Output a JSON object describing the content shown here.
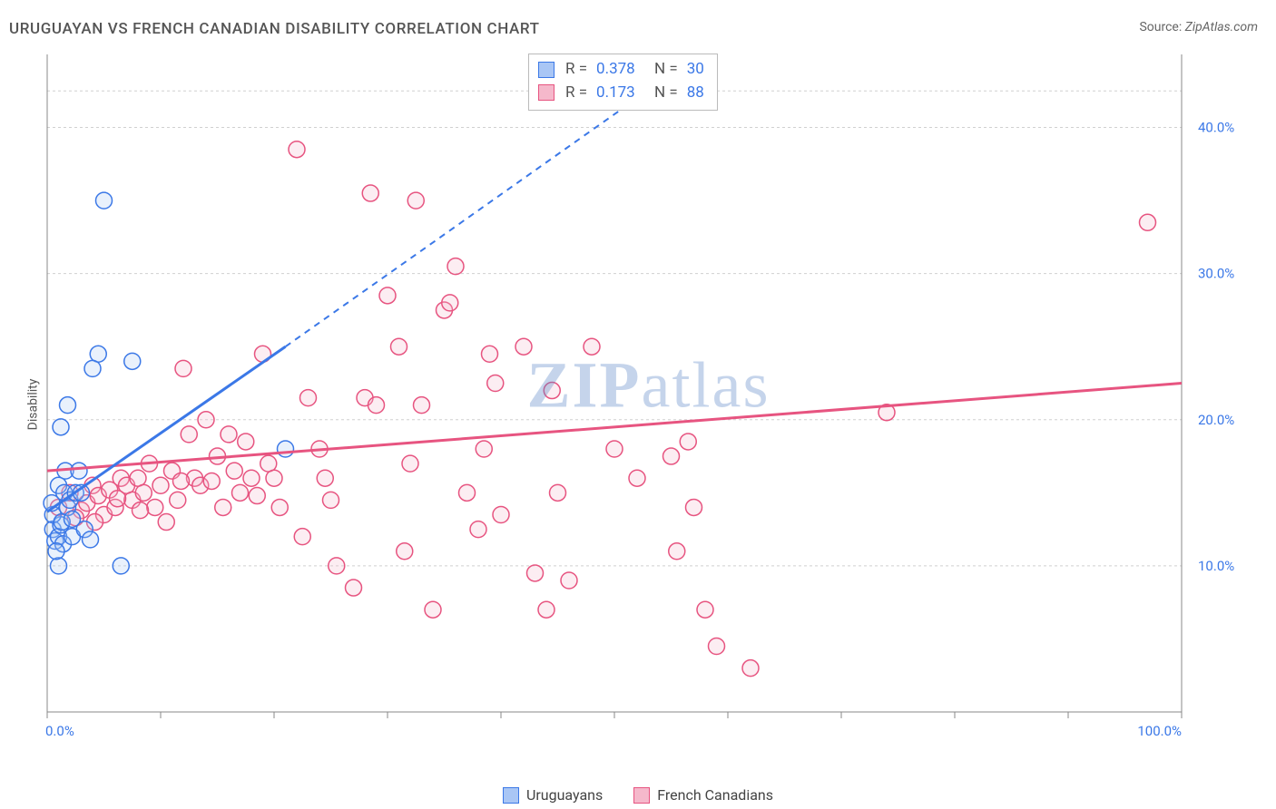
{
  "chart": {
    "type": "scatter",
    "title": "URUGUAYAN VS FRENCH CANADIAN DISABILITY CORRELATION CHART",
    "source_label": "Source:",
    "source_value": "ZipAtlas.com",
    "y_axis_label": "Disability",
    "xlim": [
      0,
      100
    ],
    "ylim": [
      0,
      45
    ],
    "x_tick_label_min": "0.0%",
    "x_tick_label_max": "100.0%",
    "x_minor_tick_step": 10,
    "y_ticks": [
      10,
      20,
      30,
      40
    ],
    "y_tick_labels": [
      "10.0%",
      "20.0%",
      "30.0%",
      "40.0%"
    ],
    "grid_color": "#d0d0d0",
    "axis_color": "#888888",
    "tick_label_color": "#3b78e7",
    "background_color": "#ffffff",
    "marker_radius": 9,
    "marker_fill_opacity": 0.25,
    "watermark_prefix": "ZIP",
    "watermark_suffix": "atlas"
  },
  "series": {
    "uruguayans": {
      "label": "Uruguayans",
      "color": "#3b78e7",
      "fill": "#a9c6f5",
      "R": "0.378",
      "N": "30",
      "trend": {
        "x1": 0,
        "y1": 13.7,
        "x2": 21,
        "y2": 25.0,
        "x2_dash": 52,
        "y2_dash": 42
      },
      "points": [
        [
          0.5,
          12.5
        ],
        [
          0.7,
          11.7
        ],
        [
          1.0,
          12.0
        ],
        [
          1.2,
          12.8
        ],
        [
          1.4,
          11.5
        ],
        [
          1.8,
          14.0
        ],
        [
          0.5,
          13.5
        ],
        [
          1.0,
          15.5
        ],
        [
          1.5,
          15.0
        ],
        [
          2.0,
          14.5
        ],
        [
          2.2,
          12.0
        ],
        [
          2.5,
          15.0
        ],
        [
          1.0,
          10.0
        ],
        [
          1.3,
          13.0
        ],
        [
          1.6,
          16.5
        ],
        [
          1.8,
          21.0
        ],
        [
          1.2,
          19.5
        ],
        [
          6.5,
          10.0
        ],
        [
          5.0,
          35.0
        ],
        [
          4.5,
          24.5
        ],
        [
          7.5,
          24.0
        ],
        [
          4.0,
          23.5
        ],
        [
          3.0,
          15.0
        ],
        [
          3.3,
          12.5
        ],
        [
          3.8,
          11.8
        ],
        [
          0.4,
          14.3
        ],
        [
          0.8,
          11.0
        ],
        [
          21.0,
          18.0
        ],
        [
          2.8,
          16.5
        ],
        [
          2.2,
          13.2
        ]
      ]
    },
    "french_canadians": {
      "label": "French Canadians",
      "color": "#e75480",
      "fill": "#f5b8cb",
      "R": "0.173",
      "N": "88",
      "trend": {
        "x1": 0,
        "y1": 16.5,
        "x2": 100,
        "y2": 22.5
      },
      "points": [
        [
          1,
          14.0
        ],
        [
          2,
          15.0
        ],
        [
          3,
          13.8
        ],
        [
          3.5,
          14.3
        ],
        [
          4,
          15.5
        ],
        [
          4.5,
          14.8
        ],
        [
          5,
          13.5
        ],
        [
          5.5,
          15.2
        ],
        [
          6,
          14.0
        ],
        [
          6.5,
          16.0
        ],
        [
          7,
          15.5
        ],
        [
          7.5,
          14.5
        ],
        [
          8,
          16.0
        ],
        [
          8.5,
          15.0
        ],
        [
          9,
          17.0
        ],
        [
          9.5,
          14.0
        ],
        [
          10,
          15.5
        ],
        [
          10.5,
          13.0
        ],
        [
          11,
          16.5
        ],
        [
          11.5,
          14.5
        ],
        [
          12,
          23.5
        ],
        [
          12.5,
          19.0
        ],
        [
          13,
          16.0
        ],
        [
          13.5,
          15.5
        ],
        [
          14,
          20.0
        ],
        [
          15,
          17.5
        ],
        [
          15.5,
          14.0
        ],
        [
          16,
          19.0
        ],
        [
          16.5,
          16.5
        ],
        [
          17,
          15.0
        ],
        [
          17.5,
          18.5
        ],
        [
          18,
          16.0
        ],
        [
          19,
          24.5
        ],
        [
          19.5,
          17.0
        ],
        [
          20,
          16.0
        ],
        [
          20.5,
          14.0
        ],
        [
          22,
          38.5
        ],
        [
          22.5,
          12.0
        ],
        [
          23,
          21.5
        ],
        [
          24,
          18.0
        ],
        [
          24.5,
          16.0
        ],
        [
          25,
          14.5
        ],
        [
          25.5,
          10.0
        ],
        [
          27,
          8.5
        ],
        [
          28,
          21.5
        ],
        [
          28.5,
          35.5
        ],
        [
          29,
          21.0
        ],
        [
          30,
          28.5
        ],
        [
          31,
          25.0
        ],
        [
          31.5,
          11.0
        ],
        [
          32,
          17.0
        ],
        [
          32.5,
          35.0
        ],
        [
          33,
          21.0
        ],
        [
          34,
          7.0
        ],
        [
          35,
          27.5
        ],
        [
          35.5,
          28.0
        ],
        [
          36,
          30.5
        ],
        [
          37,
          15.0
        ],
        [
          38,
          12.5
        ],
        [
          38.5,
          18.0
        ],
        [
          39,
          24.5
        ],
        [
          39.5,
          22.5
        ],
        [
          40,
          13.5
        ],
        [
          42,
          25.0
        ],
        [
          43,
          9.5
        ],
        [
          44,
          7.0
        ],
        [
          44.5,
          22.0
        ],
        [
          45,
          15.0
        ],
        [
          46,
          9.0
        ],
        [
          48,
          25.0
        ],
        [
          50,
          18.0
        ],
        [
          52,
          16.0
        ],
        [
          55,
          17.5
        ],
        [
          55.5,
          11.0
        ],
        [
          56.5,
          18.5
        ],
        [
          57,
          14.0
        ],
        [
          58,
          7.0
        ],
        [
          59,
          4.5
        ],
        [
          62,
          3.0
        ],
        [
          74,
          20.5
        ],
        [
          97,
          33.5
        ],
        [
          2.5,
          13.3
        ],
        [
          4.2,
          13.0
        ],
        [
          6.2,
          14.6
        ],
        [
          8.2,
          13.8
        ],
        [
          11.8,
          15.8
        ],
        [
          14.5,
          15.8
        ],
        [
          18.5,
          14.8
        ]
      ]
    }
  },
  "stats_labels": {
    "R": "R =",
    "N": "N ="
  }
}
